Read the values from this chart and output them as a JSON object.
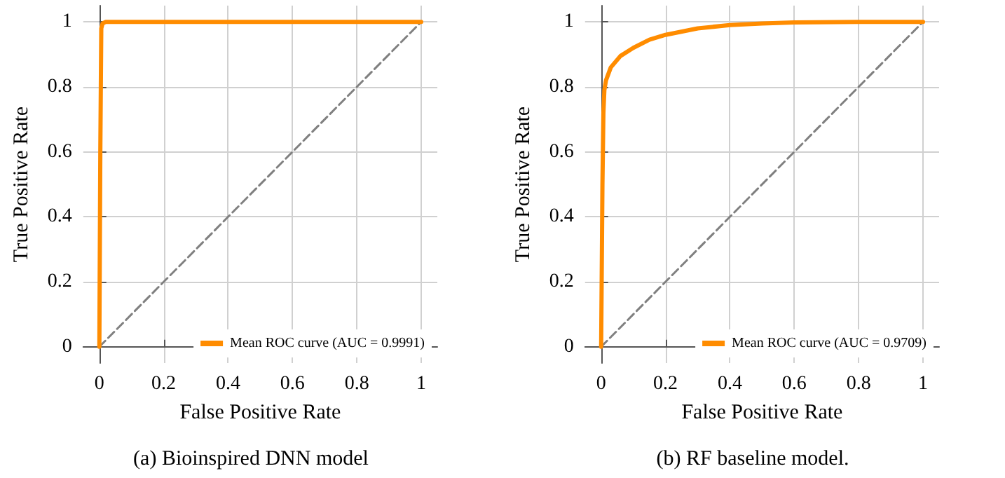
{
  "chart_data": [
    {
      "type": "line",
      "xlabel": "False Positive Rate",
      "ylabel": "True Positive Rate",
      "xlim": [
        -0.05,
        1.05
      ],
      "ylim": [
        -0.05,
        1.05
      ],
      "xticks": [
        0,
        0.2,
        0.4,
        0.6,
        0.8,
        1
      ],
      "yticks": [
        0,
        0.2,
        0.4,
        0.6,
        0.8,
        1
      ],
      "grid": true,
      "legend": "bottom right",
      "marker": "none",
      "annotations": [
        "(a) Bioinspired DNN model"
      ],
      "series": [
        {
          "color": "#808080",
          "line_style": "dashed",
          "x": [
            0,
            1
          ],
          "values": [
            0,
            1
          ]
        },
        {
          "name": "Mean ROC curve (AUC = 0.9991)",
          "color": "#ff8c00",
          "line_style": "solid",
          "x": [
            0,
            0.003,
            0.006,
            0.01,
            0.02,
            0.5,
            1
          ],
          "values": [
            0,
            0.6,
            0.98,
            0.995,
            1,
            1,
            1
          ]
        }
      ]
    },
    {
      "type": "line",
      "xlabel": "False Positive Rate",
      "ylabel": "True Positive Rate",
      "xlim": [
        -0.05,
        1.05
      ],
      "ylim": [
        -0.05,
        1.05
      ],
      "xticks": [
        0,
        0.2,
        0.4,
        0.6,
        0.8,
        1
      ],
      "yticks": [
        0,
        0.2,
        0.4,
        0.6,
        0.8,
        1
      ],
      "grid": true,
      "legend": "bottom right",
      "marker": "none",
      "annotations": [
        "(b) RF baseline model."
      ],
      "series": [
        {
          "color": "#808080",
          "line_style": "dashed",
          "x": [
            0,
            1
          ],
          "values": [
            0,
            1
          ]
        },
        {
          "name": "Mean ROC curve (AUC = 0.9709)",
          "color": "#ff8c00",
          "line_style": "solid",
          "x": [
            0,
            0.004,
            0.007,
            0.01,
            0.015,
            0.03,
            0.06,
            0.1,
            0.15,
            0.2,
            0.3,
            0.4,
            0.5,
            0.6,
            0.8,
            1
          ],
          "values": [
            0,
            0.5,
            0.72,
            0.79,
            0.82,
            0.86,
            0.895,
            0.92,
            0.945,
            0.96,
            0.98,
            0.99,
            0.995,
            0.998,
            1,
            1
          ]
        }
      ]
    }
  ]
}
